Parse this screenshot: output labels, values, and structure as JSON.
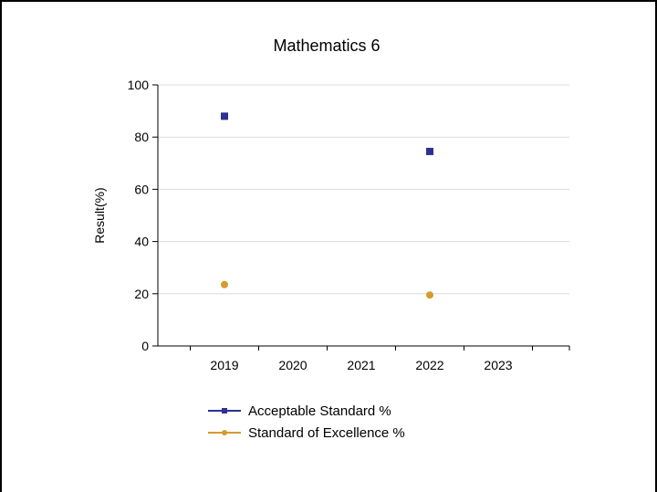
{
  "chart_data": {
    "type": "scatter",
    "title": "Mathematics 6",
    "xlabel": "",
    "ylabel": "Result(%)",
    "categories": [
      "2019",
      "2020",
      "2021",
      "2022",
      "2023"
    ],
    "ylim": [
      0,
      100
    ],
    "yticks": [
      0,
      20,
      40,
      60,
      80,
      100
    ],
    "grid": true,
    "legend_position": "bottom",
    "series": [
      {
        "name": "Acceptable Standard %",
        "color": "#2e3192",
        "marker": "square",
        "values": [
          88.0,
          null,
          null,
          74.5,
          null
        ]
      },
      {
        "name": "Standard of Excellence %",
        "color": "#d59b2d",
        "marker": "circle",
        "values": [
          23.5,
          null,
          null,
          19.5,
          null
        ]
      }
    ]
  }
}
